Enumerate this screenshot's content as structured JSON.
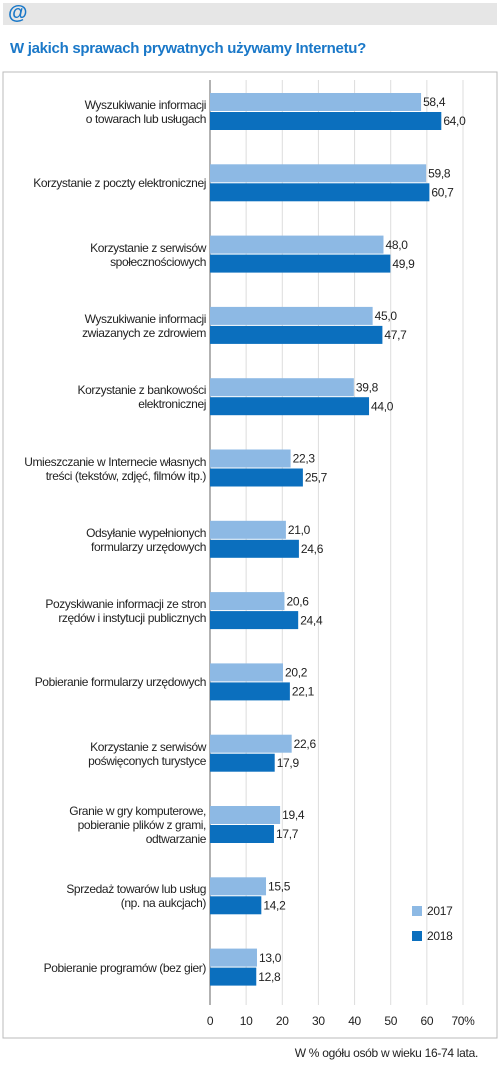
{
  "header": "@",
  "chart_data": {
    "type": "bar",
    "orientation": "horizontal",
    "title": "W jakich sprawach prywatnych używamy Internetu?",
    "categories": [
      "Wyszukiwanie informacji\no towarach lub usługach",
      "Korzystanie z poczty elektronicznej",
      "Korzystanie z serwisów\nspołecznościowych",
      "Wyszukiwanie informacji\nzwiazanych ze zdrowiem",
      "Korzystanie z bankowości\nelektronicznej",
      "Umieszczanie w Internecie własnych\ntreści (tekstów, zdjęć, filmów itp.)",
      "Odsyłanie wypełnionych\nformularzy urzędowych",
      "Pozyskiwanie informacji ze stron\nrzędów i instytucji publicznych",
      "Pobieranie formularzy urzędowych",
      "Korzystanie z serwisów\npoświęconych turystyce",
      "Granie w gry komputerowe,\npobieranie plików z grami,\nodtwarzanie",
      "Sprzedaż towarów lub usług\n(np. na aukcjach)",
      "Pobieranie programów (bez gier)"
    ],
    "series": [
      {
        "name": "2017",
        "color": "#8db9e4",
        "values": [
          58.4,
          59.8,
          48.0,
          45.0,
          39.8,
          22.3,
          21.0,
          20.6,
          20.2,
          22.6,
          19.4,
          15.5,
          13.0
        ],
        "value_labels": [
          "58,4",
          "59,8",
          "48,0",
          "45,0",
          "39,8",
          "22,3",
          "21,0",
          "20,6",
          "20,2",
          "22,6",
          "19,4",
          "15,5",
          "13,0"
        ]
      },
      {
        "name": "2018",
        "color": "#0b6fbe",
        "values": [
          64.0,
          60.7,
          49.9,
          47.7,
          44.0,
          25.7,
          24.6,
          24.4,
          22.1,
          17.9,
          17.7,
          14.2,
          12.8
        ],
        "value_labels": [
          "64,0",
          "60,7",
          "49,9",
          "47,7",
          "44,0",
          "25,7",
          "24,6",
          "24,4",
          "22,1",
          "17,9",
          "17,7",
          "14,2",
          "12,8"
        ]
      }
    ],
    "xlim": [
      0,
      70
    ],
    "xticks": [
      0,
      10,
      20,
      30,
      40,
      50,
      60,
      {
        "value": 70,
        "label": "70%"
      }
    ],
    "grid": true,
    "legend": "bottom-right",
    "note": "W % ogółu osób w wieku 16-74 lata."
  }
}
